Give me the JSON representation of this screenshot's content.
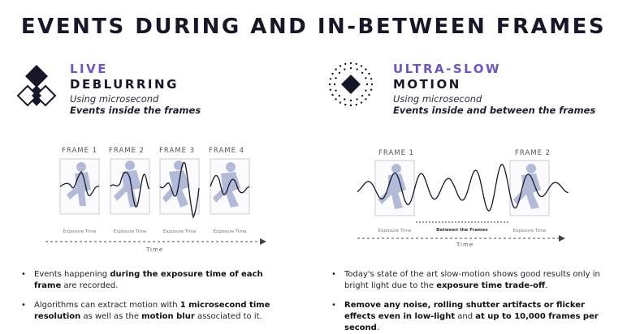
{
  "title": "EVENTS DURING AND IN-BETWEEN FRAMES",
  "left": {
    "heading_accent": "LIVE",
    "heading_main": "DEBLURRING",
    "subtitle1": "Using microsecond",
    "subtitle2": "Events inside the frames",
    "frames": [
      "FRAME 1",
      "FRAME 2",
      "FRAME 3",
      "FRAME 4"
    ],
    "exposure_label": "Exposure Time",
    "time_label": "Time",
    "bullets": [
      {
        "pre": "Events happening ",
        "bold": "during the exposure time of each frame",
        "post": " are recorded."
      },
      {
        "pre": "Algorithms can extract motion with ",
        "bold": "1 microsecond time resolution",
        "post": " as well as the ",
        "bold2": "motion blur",
        "post2": " associated to it."
      }
    ]
  },
  "right": {
    "heading_accent": "ULTRA-SLOW",
    "heading_main": "MOTION",
    "subtitle1": "Using microsecond",
    "subtitle2": "Events inside and between the frames",
    "frames": [
      "FRAME 1",
      "FRAME 2"
    ],
    "exposure_label": "Exposure Time",
    "between_label": "Between the Frames",
    "time_label": "Time",
    "bullets": [
      {
        "pre": "Today's state of the art slow-motion shows good results only in bright light due to the ",
        "bold": "exposure time trade-off",
        "post": "."
      },
      {
        "bold": "Remove any noise, rolling shutter artifacts or flicker effects even in low-light",
        "pre2": " and ",
        "bold2": "at up to 10,000 frames per second",
        "post": "."
      }
    ]
  },
  "colors": {
    "accent": "#6b56c8",
    "figure": "#a9b4d3",
    "dark": "#17172a"
  }
}
